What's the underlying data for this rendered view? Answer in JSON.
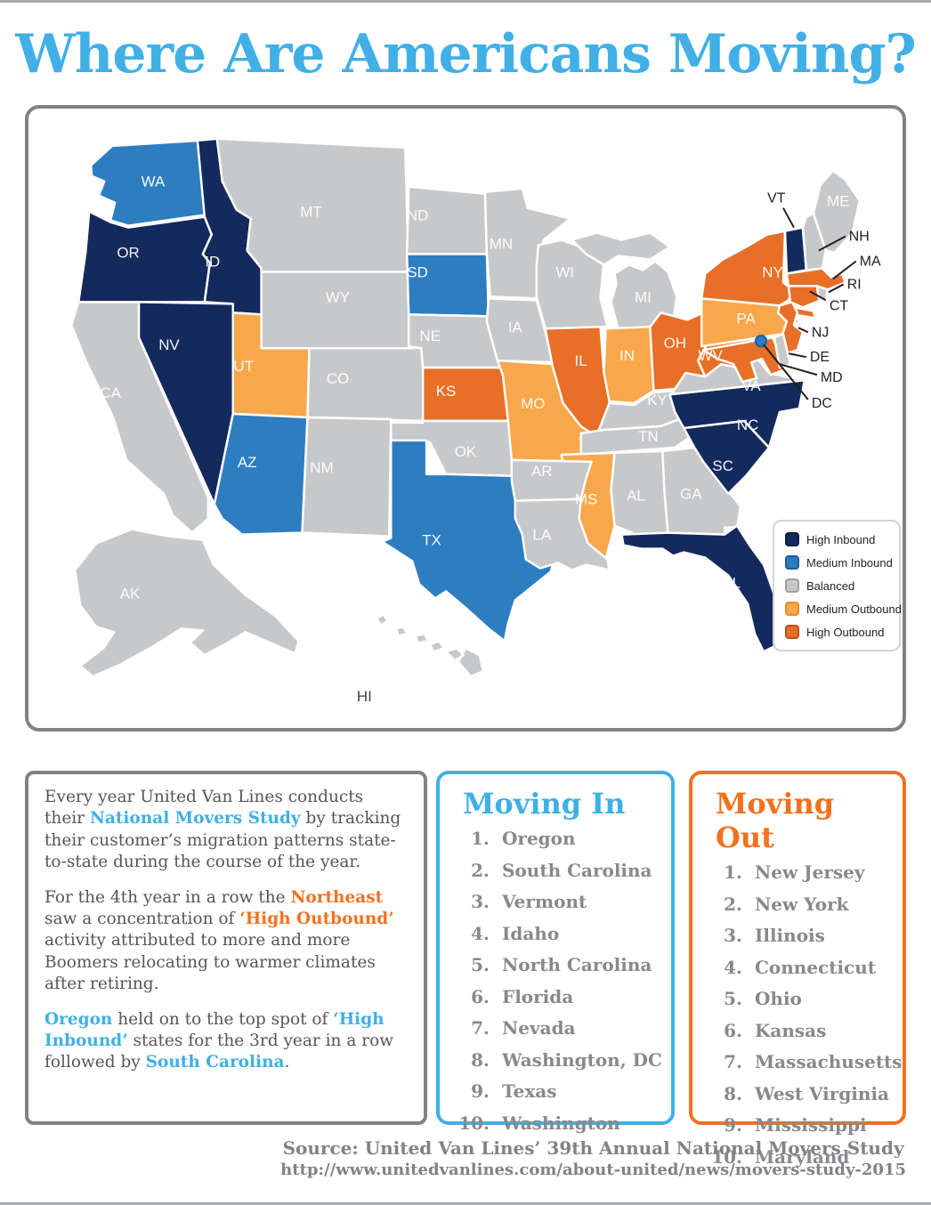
{
  "title": "Where Are Americans Moving?",
  "colors": {
    "blue": "#3fb0e6",
    "orange": "#f2711f"
  },
  "map": {
    "colors": {
      "high_in": {
        "fill": "#152a5c",
        "border": "#0d1c40"
      },
      "med_in": {
        "fill": "#2e7dc0",
        "border": "#1c5c96"
      },
      "balanced": {
        "fill": "#c7c8ca",
        "border": "#9d9fa2"
      },
      "med_out": {
        "fill": "#f9a74b",
        "border": "#ef8b26"
      },
      "high_out": {
        "fill": "#e76f28",
        "border": "#c04e15"
      }
    },
    "legend": [
      {
        "key": "high_in",
        "label": "High Inbound"
      },
      {
        "key": "med_in",
        "label": "Medium Inbound"
      },
      {
        "key": "balanced",
        "label": "Balanced"
      },
      {
        "key": "med_out",
        "label": "Medium Outbound"
      },
      {
        "key": "high_out",
        "label": "High Outbound"
      }
    ],
    "states": {
      "WA": "med_in",
      "OR": "high_in",
      "CA": "balanced",
      "NV": "high_in",
      "ID": "high_in",
      "MT": "balanced",
      "WY": "balanced",
      "UT": "med_out",
      "CO": "balanced",
      "AZ": "med_in",
      "NM": "balanced",
      "ND": "balanced",
      "SD": "med_in",
      "NE": "balanced",
      "KS": "high_out",
      "OK": "balanced",
      "TX": "med_in",
      "MN": "balanced",
      "IA": "balanced",
      "MO": "med_out",
      "AR": "balanced",
      "LA": "balanced",
      "WI": "balanced",
      "IL": "high_out",
      "MS": "med_out",
      "MI": "balanced",
      "IN": "med_out",
      "OH": "high_out",
      "KY": "balanced",
      "TN": "balanced",
      "AL": "balanced",
      "GA": "balanced",
      "FL": "high_in",
      "SC": "high_in",
      "NC": "high_in",
      "VA": "balanced",
      "WV": "high_out",
      "PA": "med_out",
      "NY": "high_out",
      "NJ": "high_out",
      "DE": "balanced",
      "MD": "high_out",
      "VT": "high_in",
      "NH": "balanced",
      "MA": "high_out",
      "CT": "high_out",
      "RI": "balanced",
      "ME": "balanced",
      "AK": "balanced",
      "HI": "balanced",
      "DC": "med_in"
    }
  },
  "summary": {
    "paragraphs": [
      [
        {
          "t": "Every year United Van Lines conducts their "
        },
        {
          "t": "National Movers Study",
          "b": true,
          "c": "blue"
        },
        {
          "t": " by tracking their customer’s migration patterns state-to-state during the course of the year."
        }
      ],
      [
        {
          "t": "For the 4th year in a row the "
        },
        {
          "t": "Northeast",
          "b": true,
          "c": "orange"
        },
        {
          "t": " saw a concentration of "
        },
        {
          "t": "‘High Outbound’",
          "b": true,
          "c": "orange"
        },
        {
          "t": " activity attributed to more and more Boomers relocating to warmer climates after retiring."
        }
      ],
      [
        {
          "t": "Oregon",
          "b": true,
          "c": "blue"
        },
        {
          "t": " held on to the top spot of "
        },
        {
          "t": "‘High Inbound’",
          "b": true,
          "c": "blue"
        },
        {
          "t": " states for the 3rd year in a row followed by "
        },
        {
          "t": "South Carolina",
          "b": true,
          "c": "blue"
        },
        {
          "t": "."
        }
      ]
    ]
  },
  "moving_in": {
    "title": "Moving In",
    "items": [
      "Oregon",
      "South Carolina",
      "Vermont",
      "Idaho",
      "North Carolina",
      "Florida",
      "Nevada",
      "Washington, DC",
      "Texas",
      "Washington"
    ]
  },
  "moving_out": {
    "title": "Moving Out",
    "items": [
      "New Jersey",
      "New York",
      "Illinois",
      "Connecticut",
      "Ohio",
      "Kansas",
      "Massachusetts",
      "West Virginia",
      "Mississippi",
      "Maryland"
    ]
  },
  "source": {
    "line1": "Source: United Van Lines’ 39th Annual National Movers Study",
    "line2": "http://www.unitedvanlines.com/about-united/news/movers-study-2015"
  },
  "chart_data": {
    "type": "heatmap",
    "title": "Where Are Americans Moving? — US state migration status (choropleth)",
    "legend_entries": [
      "High Inbound",
      "Medium Inbound",
      "Balanced",
      "Medium Outbound",
      "High Outbound"
    ],
    "legend_position": "bottom-right of map",
    "state_categories": {
      "high_inbound": [
        "OR",
        "ID",
        "NV",
        "VT",
        "NC",
        "SC",
        "FL"
      ],
      "medium_inbound": [
        "WA",
        "SD",
        "AZ",
        "TX",
        "DC"
      ],
      "balanced": [
        "CA",
        "MT",
        "WY",
        "CO",
        "NM",
        "ND",
        "NE",
        "OK",
        "MN",
        "IA",
        "WI",
        "MI",
        "AR",
        "LA",
        "KY",
        "TN",
        "AL",
        "GA",
        "VA",
        "ME",
        "NH",
        "RI",
        "DE",
        "AK",
        "HI"
      ],
      "medium_outbound": [
        "UT",
        "MO",
        "IN",
        "PA",
        "MS"
      ],
      "high_outbound": [
        "KS",
        "IL",
        "OH",
        "WV",
        "NY",
        "NJ",
        "CT",
        "MA",
        "MD"
      ]
    },
    "moving_in_top10": [
      "Oregon",
      "South Carolina",
      "Vermont",
      "Idaho",
      "North Carolina",
      "Florida",
      "Nevada",
      "Washington, DC",
      "Texas",
      "Washington"
    ],
    "moving_out_top10": [
      "New Jersey",
      "New York",
      "Illinois",
      "Connecticut",
      "Ohio",
      "Kansas",
      "Massachusetts",
      "West Virginia",
      "Mississippi",
      "Maryland"
    ]
  }
}
